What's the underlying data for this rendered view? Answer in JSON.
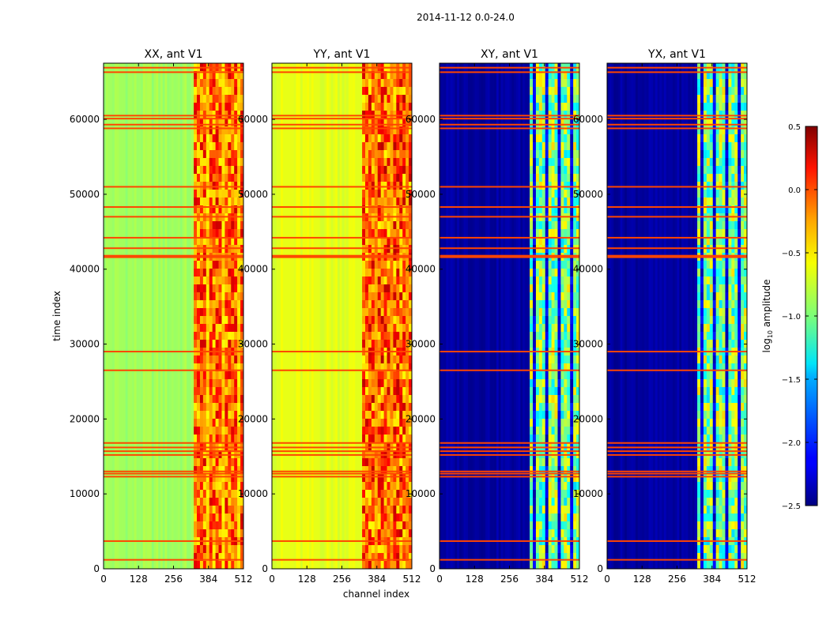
{
  "chart_data": {
    "type": "heatmap",
    "suptitle": "2014-11-12 0.0-24.0",
    "xlabel": "channel index",
    "ylabel": "time index",
    "xlim": [
      0,
      512
    ],
    "ylim": [
      0,
      67500
    ],
    "xticks": [
      0,
      128,
      256,
      384,
      512
    ],
    "yticks": [
      0,
      10000,
      20000,
      30000,
      40000,
      50000,
      60000
    ],
    "colormap": "jet",
    "colorbar": {
      "label": "log10 amplitude",
      "label_main": "log",
      "label_sub": "10",
      "label_rest": " amplitude",
      "range": [
        -2.5,
        0.5
      ],
      "ticks": [
        0.5,
        0.0,
        -0.5,
        -1.0,
        -1.5,
        -2.0,
        -2.5
      ],
      "tick_labels": [
        "0.5",
        "0.0",
        "−0.5",
        "−1.0",
        "−1.5",
        "−2.0",
        "−2.5"
      ]
    },
    "flagged_rows": [
      1200,
      3700,
      12300,
      12700,
      13000,
      15200,
      15700,
      16200,
      16800,
      26500,
      29000,
      41600,
      41800,
      42800,
      44200,
      47000,
      48300,
      51000,
      58800,
      59300,
      60100,
      60500,
      66300,
      66900
    ],
    "rfi_band_channels": [
      330,
      512
    ],
    "panels": [
      {
        "title": "XX, ant V1",
        "base_level": -0.9,
        "band_level": -0.3,
        "peak_level": 0.1
      },
      {
        "title": "YY, ant V1",
        "base_level": -0.7,
        "band_level": -0.3,
        "peak_level": 0.15
      },
      {
        "title": "XY, ant V1",
        "base_level": -2.4,
        "band_level": -1.1,
        "peak_level": -0.5
      },
      {
        "title": "YX, ant V1",
        "base_level": -2.4,
        "band_level": -1.1,
        "peak_level": -0.5
      }
    ]
  }
}
